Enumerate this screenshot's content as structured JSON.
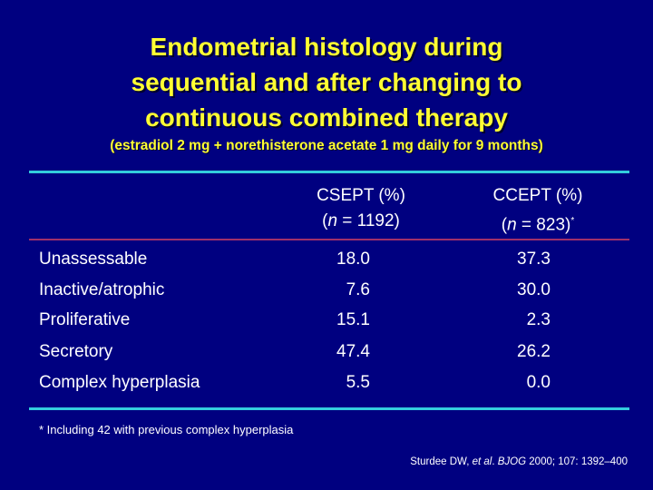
{
  "title": {
    "line1": "Endometrial histology during",
    "line2": "sequential and after changing to",
    "line3": "continuous combined therapy"
  },
  "subtitle": "(estradiol 2 mg + norethisterone acetate 1 mg daily for 9 months)",
  "table": {
    "columns": [
      {
        "label": "CSEPT (%)",
        "n_prefix": "(",
        "n_italic": "n",
        "n_rest": " = 1192)",
        "marker": ""
      },
      {
        "label": "CCEPT (%)",
        "n_prefix": "(",
        "n_italic": "n",
        "n_rest": " = 823)",
        "marker": "*"
      }
    ],
    "rows": [
      {
        "label": "Unassessable",
        "csept": "18.0",
        "ccept": "37.3"
      },
      {
        "label": "Inactive/atrophic",
        "csept": "7.6",
        "ccept": "30.0"
      },
      {
        "label": "Proliferative",
        "csept": "15.1",
        "ccept": "2.3"
      },
      {
        "label": "Secretory",
        "csept": "47.4",
        "ccept": "26.2"
      },
      {
        "label": "Complex hyperplasia",
        "csept": "5.5",
        "ccept": "0.0"
      }
    ]
  },
  "footnote": "* Including 42 with previous complex hyperplasia",
  "citation": {
    "authors": "Sturdee DW, ",
    "etal": "et al",
    "journal_sep": ". ",
    "journal": "BJOG",
    "rest": " 2000; 107: 1392–400"
  },
  "colors": {
    "background": "#000080",
    "title": "#ffff33",
    "rule_cyan": "#33ccdd",
    "rule_magenta": "#a0306a",
    "text": "#ffffff"
  }
}
